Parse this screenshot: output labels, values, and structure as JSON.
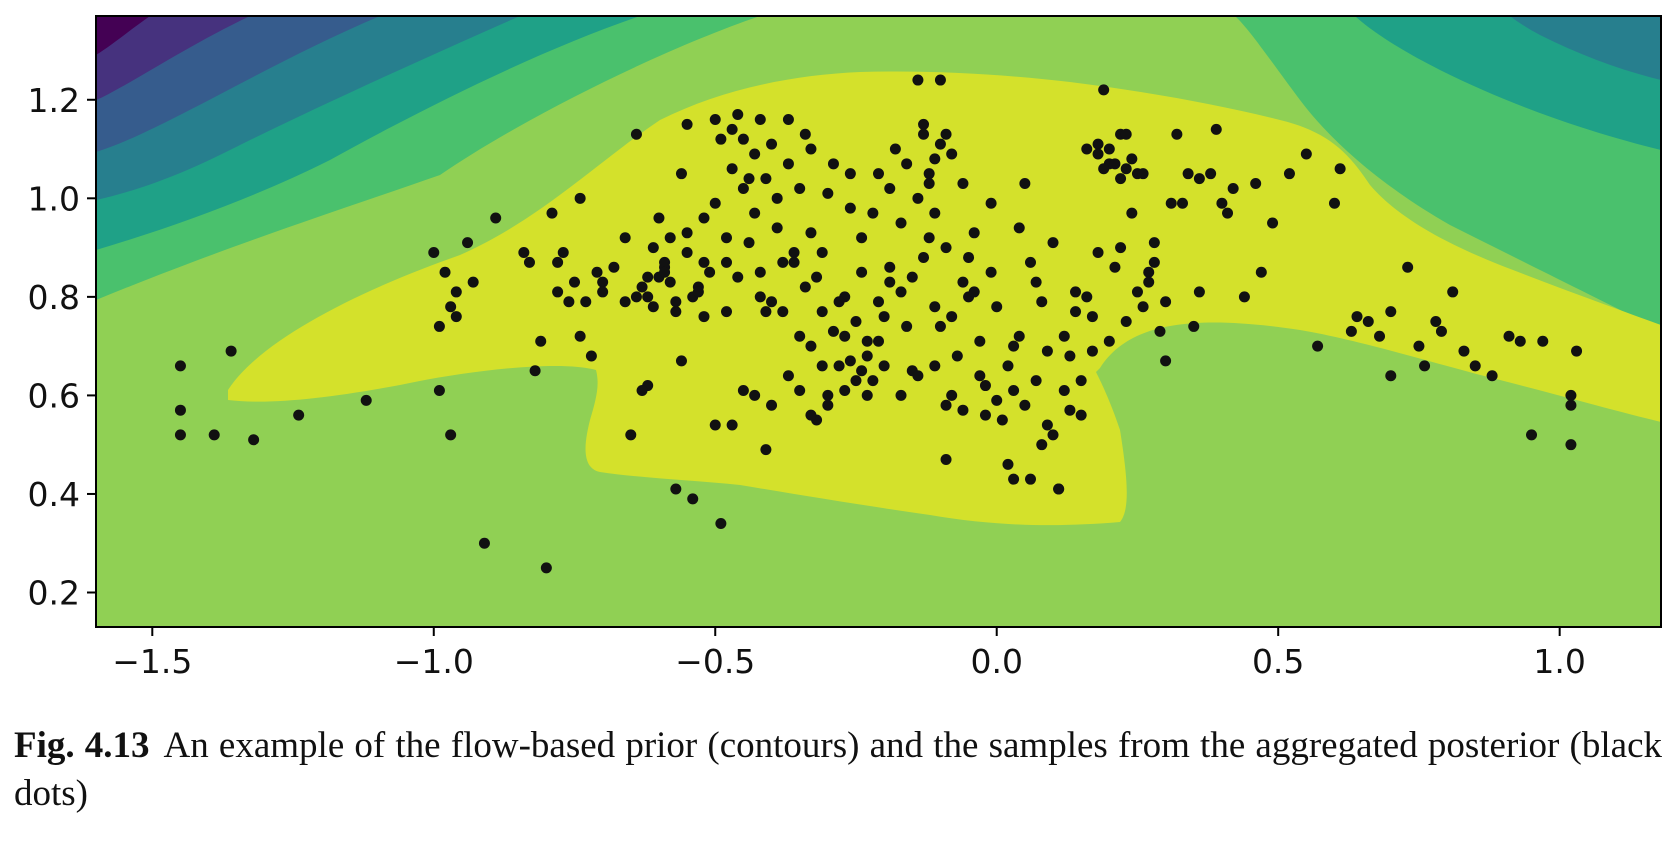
{
  "chart_data": {
    "type": "scatter",
    "title": "",
    "xlabel": "",
    "ylabel": "",
    "xlim": [
      -1.6,
      1.18
    ],
    "ylim": [
      0.13,
      1.37
    ],
    "x_ticks": [
      -1.5,
      -1.0,
      -0.5,
      0.0,
      0.5,
      1.0
    ],
    "x_tick_labels": [
      "−1.5",
      "−1.0",
      "−0.5",
      "0.0",
      "0.5",
      "1.0"
    ],
    "y_ticks": [
      0.2,
      0.4,
      0.6,
      0.8,
      1.0,
      1.2
    ],
    "y_tick_labels": [
      "0.2",
      "0.4",
      "0.6",
      "0.8",
      "1.0",
      "1.2"
    ],
    "grid": false,
    "contour_colormap": [
      "#440154",
      "#46327e",
      "#365c8d",
      "#277f8e",
      "#1fa187",
      "#4ac16d",
      "#90d054",
      "#d4e12b"
    ],
    "background_level_color": "#90d054",
    "highest_level_color": "#d4e12b",
    "point_color": "#111111",
    "series": [
      {
        "points": [
          [
            -1.45,
            0.66
          ],
          [
            -1.45,
            0.57
          ],
          [
            -1.45,
            0.52
          ],
          [
            -1.39,
            0.52
          ],
          [
            -1.32,
            0.51
          ],
          [
            -1.36,
            0.69
          ],
          [
            -1.24,
            0.56
          ],
          [
            -1.12,
            0.59
          ],
          [
            -1.0,
            0.89
          ],
          [
            -0.99,
            0.74
          ],
          [
            -0.98,
            0.85
          ],
          [
            -0.97,
            0.78
          ],
          [
            -0.96,
            0.81
          ],
          [
            -0.96,
            0.76
          ],
          [
            -0.94,
            0.91
          ],
          [
            -0.93,
            0.83
          ],
          [
            -0.99,
            0.61
          ],
          [
            -0.97,
            0.52
          ],
          [
            -0.91,
            0.3
          ],
          [
            -0.89,
            0.96
          ],
          [
            -0.84,
            0.89
          ],
          [
            -0.83,
            0.87
          ],
          [
            -0.81,
            0.71
          ],
          [
            -0.82,
            0.65
          ],
          [
            -0.8,
            0.25
          ],
          [
            -0.79,
            0.97
          ],
          [
            -0.78,
            0.87
          ],
          [
            -0.77,
            0.89
          ],
          [
            -0.78,
            0.81
          ],
          [
            -0.76,
            0.79
          ],
          [
            -0.75,
            0.83
          ],
          [
            -0.74,
            1.0
          ],
          [
            -0.73,
            0.79
          ],
          [
            -0.74,
            0.72
          ],
          [
            -0.72,
            0.68
          ],
          [
            -0.71,
            0.85
          ],
          [
            -0.7,
            0.83
          ],
          [
            -0.64,
            1.13
          ],
          [
            -0.63,
            0.82
          ],
          [
            -0.62,
            0.8
          ],
          [
            -0.61,
            0.78
          ],
          [
            -0.6,
            0.84
          ],
          [
            -0.59,
            0.86
          ],
          [
            -0.59,
            0.87
          ],
          [
            -0.58,
            0.83
          ],
          [
            -0.57,
            0.79
          ],
          [
            -0.56,
            1.05
          ],
          [
            -0.55,
            1.15
          ],
          [
            -0.55,
            0.93
          ],
          [
            -0.54,
            0.8
          ],
          [
            -0.53,
            0.82
          ],
          [
            -0.52,
            0.76
          ],
          [
            -0.51,
            0.85
          ],
          [
            -0.5,
            1.16
          ],
          [
            -0.5,
            0.54
          ],
          [
            -0.49,
            1.12
          ],
          [
            -0.48,
            0.77
          ],
          [
            -0.47,
            1.14
          ],
          [
            -0.46,
            1.17
          ],
          [
            -0.45,
            1.12
          ],
          [
            -0.44,
            1.04
          ],
          [
            -0.43,
            0.97
          ],
          [
            -0.42,
            1.16
          ],
          [
            -0.42,
            0.85
          ],
          [
            -0.41,
            0.77
          ],
          [
            -0.4,
            1.11
          ],
          [
            -0.39,
            0.94
          ],
          [
            -0.38,
            0.77
          ],
          [
            -0.37,
            1.16
          ],
          [
            -0.36,
            0.87
          ],
          [
            -0.35,
            0.72
          ],
          [
            -0.34,
            1.13
          ],
          [
            -0.33,
            0.93
          ],
          [
            -0.32,
            0.84
          ],
          [
            -0.31,
            0.77
          ],
          [
            -0.3,
            0.6
          ],
          [
            -0.29,
            1.07
          ],
          [
            -0.28,
            0.66
          ],
          [
            -0.27,
            0.8
          ],
          [
            -0.26,
            1.05
          ],
          [
            -0.25,
            0.75
          ],
          [
            -0.24,
            0.85
          ],
          [
            -0.23,
            0.71
          ],
          [
            -0.22,
            0.63
          ],
          [
            -0.21,
            1.05
          ],
          [
            -0.2,
            0.76
          ],
          [
            -0.19,
            0.86
          ],
          [
            -0.18,
            1.1
          ],
          [
            -0.17,
            0.95
          ],
          [
            -0.16,
            0.74
          ],
          [
            -0.15,
            0.65
          ],
          [
            -0.14,
            1.24
          ],
          [
            -0.13,
            1.15
          ],
          [
            -0.12,
            1.05
          ],
          [
            -0.11,
            0.97
          ],
          [
            -0.1,
            1.24
          ],
          [
            -0.1,
            1.11
          ],
          [
            -0.09,
            0.9
          ],
          [
            -0.08,
            0.6
          ],
          [
            -0.07,
            0.68
          ],
          [
            -0.06,
            1.03
          ],
          [
            -0.05,
            0.8
          ],
          [
            -0.04,
            0.93
          ],
          [
            -0.03,
            0.71
          ],
          [
            -0.02,
            0.62
          ],
          [
            -0.01,
            0.99
          ],
          [
            0.0,
            0.78
          ],
          [
            0.01,
            0.55
          ],
          [
            0.02,
            0.46
          ],
          [
            0.03,
            0.7
          ],
          [
            0.04,
            0.94
          ],
          [
            0.05,
            1.03
          ],
          [
            0.06,
            0.87
          ],
          [
            0.07,
            0.63
          ],
          [
            0.08,
            0.79
          ],
          [
            0.09,
            0.54
          ],
          [
            0.1,
            0.91
          ],
          [
            0.11,
            0.41
          ],
          [
            0.12,
            0.72
          ],
          [
            0.13,
            0.68
          ],
          [
            0.14,
            0.81
          ],
          [
            0.15,
            0.56
          ],
          [
            0.16,
            1.1
          ],
          [
            0.17,
            0.76
          ],
          [
            0.18,
            1.11
          ],
          [
            0.19,
            1.22
          ],
          [
            0.2,
            1.07
          ],
          [
            0.21,
            0.86
          ],
          [
            0.22,
            1.13
          ],
          [
            0.23,
            1.06
          ],
          [
            0.24,
            0.97
          ],
          [
            0.25,
            1.05
          ],
          [
            0.26,
            0.78
          ],
          [
            0.27,
            0.85
          ],
          [
            0.28,
            0.91
          ],
          [
            0.29,
            0.73
          ],
          [
            0.3,
            0.67
          ],
          [
            0.31,
            0.99
          ],
          [
            0.32,
            1.13
          ],
          [
            0.34,
            1.05
          ],
          [
            0.35,
            0.74
          ],
          [
            0.36,
            0.81
          ],
          [
            0.38,
            1.05
          ],
          [
            0.39,
            1.14
          ],
          [
            0.4,
            0.99
          ],
          [
            0.42,
            1.02
          ],
          [
            0.44,
            0.8
          ],
          [
            0.46,
            1.03
          ],
          [
            0.47,
            0.85
          ],
          [
            0.49,
            0.95
          ],
          [
            0.52,
            1.05
          ],
          [
            0.55,
            1.09
          ],
          [
            0.57,
            0.7
          ],
          [
            0.6,
            0.99
          ],
          [
            0.61,
            1.06
          ],
          [
            0.63,
            0.73
          ],
          [
            0.64,
            0.76
          ],
          [
            0.66,
            0.75
          ],
          [
            0.68,
            0.72
          ],
          [
            0.7,
            0.77
          ],
          [
            0.7,
            0.64
          ],
          [
            0.73,
            0.86
          ],
          [
            0.75,
            0.7
          ],
          [
            0.76,
            0.66
          ],
          [
            0.78,
            0.75
          ],
          [
            0.79,
            0.73
          ],
          [
            0.81,
            0.81
          ],
          [
            0.83,
            0.69
          ],
          [
            0.85,
            0.66
          ],
          [
            0.88,
            0.64
          ],
          [
            0.91,
            0.72
          ],
          [
            0.93,
            0.71
          ],
          [
            0.95,
            0.52
          ],
          [
            0.97,
            0.71
          ],
          [
            1.02,
            0.6
          ],
          [
            1.02,
            0.58
          ],
          [
            1.03,
            0.69
          ],
          [
            1.02,
            0.5
          ],
          [
            -0.56,
            0.67
          ],
          [
            -0.57,
            0.41
          ],
          [
            -0.54,
            0.39
          ],
          [
            -0.49,
            0.34
          ],
          [
            -0.41,
            0.49
          ],
          [
            -0.09,
            0.47
          ],
          [
            0.03,
            0.43
          ],
          [
            0.06,
            0.43
          ],
          [
            0.11,
            0.41
          ],
          [
            -0.62,
            0.62
          ],
          [
            -0.63,
            0.61
          ],
          [
            -0.65,
            0.52
          ],
          [
            -0.47,
            0.54
          ],
          [
            -0.32,
            0.55
          ],
          [
            -0.6,
            0.96
          ],
          [
            -0.61,
            0.9
          ],
          [
            -0.58,
            0.92
          ],
          [
            -0.55,
            0.89
          ],
          [
            -0.52,
            0.87
          ],
          [
            -0.48,
            0.87
          ],
          [
            -0.46,
            0.84
          ],
          [
            -0.44,
            0.91
          ],
          [
            -0.42,
            0.8
          ],
          [
            -0.4,
            0.79
          ],
          [
            -0.38,
            0.87
          ],
          [
            -0.36,
            0.89
          ],
          [
            -0.34,
            0.82
          ],
          [
            -0.31,
            0.89
          ],
          [
            -0.28,
            0.79
          ],
          [
            -0.27,
            0.72
          ],
          [
            -0.25,
            0.63
          ],
          [
            -0.23,
            0.68
          ],
          [
            -0.21,
            0.79
          ],
          [
            -0.19,
            0.83
          ],
          [
            -0.17,
            0.81
          ],
          [
            -0.15,
            0.84
          ],
          [
            -0.13,
            0.88
          ],
          [
            -0.12,
            0.92
          ],
          [
            -0.11,
            0.78
          ],
          [
            -0.1,
            0.74
          ],
          [
            -0.08,
            0.76
          ],
          [
            -0.06,
            0.83
          ],
          [
            -0.05,
            0.88
          ],
          [
            -0.04,
            0.81
          ],
          [
            -0.03,
            0.64
          ],
          [
            -0.01,
            0.85
          ],
          [
            0.02,
            0.66
          ],
          [
            0.04,
            0.72
          ],
          [
            0.07,
            0.83
          ],
          [
            0.09,
            0.69
          ],
          [
            0.12,
            0.61
          ],
          [
            0.14,
            0.77
          ],
          [
            0.16,
            0.8
          ],
          [
            0.18,
            0.89
          ],
          [
            0.22,
            0.9
          ],
          [
            0.25,
            0.81
          ],
          [
            0.28,
            0.87
          ],
          [
            0.33,
            0.99
          ],
          [
            0.36,
            1.04
          ],
          [
            0.41,
            0.97
          ],
          [
            -0.45,
            0.61
          ],
          [
            -0.43,
            0.6
          ],
          [
            -0.4,
            0.58
          ],
          [
            -0.37,
            0.64
          ],
          [
            -0.35,
            0.61
          ],
          [
            -0.33,
            0.56
          ],
          [
            -0.3,
            0.58
          ],
          [
            -0.27,
            0.61
          ],
          [
            -0.24,
            0.65
          ],
          [
            -0.2,
            0.66
          ],
          [
            -0.17,
            0.6
          ],
          [
            -0.14,
            0.64
          ],
          [
            -0.11,
            0.66
          ],
          [
            -0.09,
            0.58
          ],
          [
            -0.06,
            0.57
          ],
          [
            -0.02,
            0.56
          ],
          [
            0.0,
            0.59
          ],
          [
            0.03,
            0.61
          ],
          [
            0.05,
            0.58
          ],
          [
            0.08,
            0.5
          ],
          [
            0.1,
            0.52
          ],
          [
            0.13,
            0.57
          ],
          [
            -0.47,
            1.06
          ],
          [
            -0.45,
            1.02
          ],
          [
            -0.43,
            1.09
          ],
          [
            -0.41,
            1.04
          ],
          [
            -0.39,
            1.0
          ],
          [
            -0.37,
            1.07
          ],
          [
            -0.35,
            1.02
          ],
          [
            -0.33,
            1.1
          ],
          [
            -0.3,
            1.01
          ],
          [
            -0.26,
            0.98
          ],
          [
            -0.24,
            0.92
          ],
          [
            -0.22,
            0.97
          ],
          [
            -0.19,
            1.02
          ],
          [
            -0.16,
            1.07
          ],
          [
            -0.14,
            1.0
          ],
          [
            -0.12,
            1.03
          ],
          [
            -0.11,
            1.08
          ],
          [
            -0.09,
            1.13
          ],
          [
            -0.08,
            1.09
          ],
          [
            -0.13,
            1.13
          ],
          [
            0.18,
            1.09
          ],
          [
            0.2,
            1.1
          ],
          [
            0.21,
            1.07
          ],
          [
            0.22,
            1.04
          ],
          [
            0.24,
            1.08
          ],
          [
            0.26,
            1.05
          ],
          [
            0.19,
            1.06
          ],
          [
            0.23,
            1.13
          ],
          [
            -0.52,
            0.96
          ],
          [
            -0.5,
            0.99
          ],
          [
            -0.48,
            0.92
          ],
          [
            -0.53,
            0.81
          ],
          [
            -0.57,
            0.77
          ],
          [
            -0.59,
            0.85
          ],
          [
            -0.62,
            0.84
          ],
          [
            -0.64,
            0.8
          ],
          [
            -0.66,
            0.79
          ],
          [
            -0.68,
            0.86
          ],
          [
            -0.7,
            0.81
          ],
          [
            -0.66,
            0.92
          ],
          [
            -0.33,
            0.7
          ],
          [
            -0.31,
            0.66
          ],
          [
            -0.29,
            0.73
          ],
          [
            -0.26,
            0.67
          ],
          [
            -0.23,
            0.6
          ],
          [
            -0.21,
            0.71
          ],
          [
            0.15,
            0.63
          ],
          [
            0.17,
            0.69
          ],
          [
            0.2,
            0.71
          ],
          [
            0.23,
            0.75
          ],
          [
            0.27,
            0.83
          ],
          [
            0.3,
            0.79
          ]
        ]
      }
    ]
  },
  "caption": {
    "label": "Fig. 4.13",
    "text": "An example of the flow-based prior (contours) and the samples from the aggregated posterior (black dots)"
  }
}
